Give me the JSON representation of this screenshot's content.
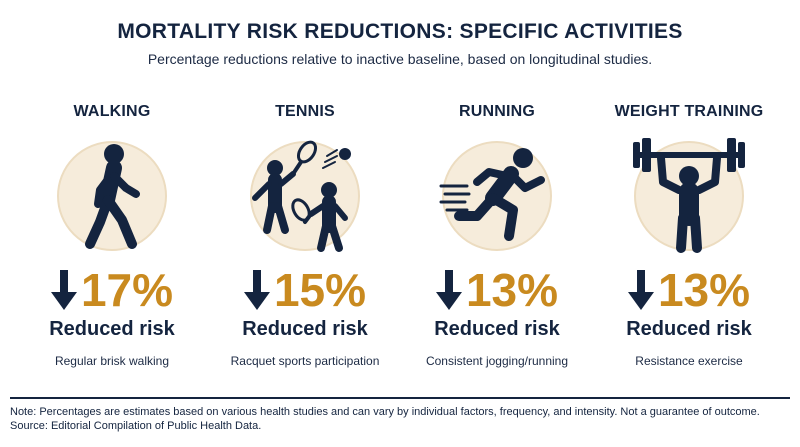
{
  "header": {
    "title": "MORTALITY RISK REDUCTIONS: SPECIFIC ACTIVITIES",
    "subtitle": "Percentage reductions relative to inactive baseline, based on longitudinal studies."
  },
  "activities": [
    {
      "name": "WALKING",
      "reduction_percent": 17,
      "reduction_label": "17%",
      "result_label": "Reduced risk",
      "description": "Regular brisk walking",
      "icon": "walking-person-icon"
    },
    {
      "name": "TENNIS",
      "reduction_percent": 15,
      "reduction_label": "15%",
      "result_label": "Reduced risk",
      "description": "Racquet sports participation",
      "icon": "tennis-players-icon"
    },
    {
      "name": "RUNNING",
      "reduction_percent": 13,
      "reduction_label": "13%",
      "result_label": "Reduced risk",
      "description": "Consistent jogging/running",
      "icon": "running-person-icon"
    },
    {
      "name": "WEIGHT TRAINING",
      "reduction_percent": 13,
      "reduction_label": "13%",
      "result_label": "Reduced risk",
      "description": "Resistance exercise",
      "icon": "weightlifter-icon"
    }
  ],
  "footer": {
    "note": "Note: Percentages are estimates based on various health studies and can vary by individual factors, frequency, and intensity. Not a guarantee of outcome.",
    "source": "Source: Editorial Compilation of Public Health Data."
  },
  "colors": {
    "navy": "#14243f",
    "accent": "#c98a1f",
    "circle": "#f3e7d2"
  }
}
